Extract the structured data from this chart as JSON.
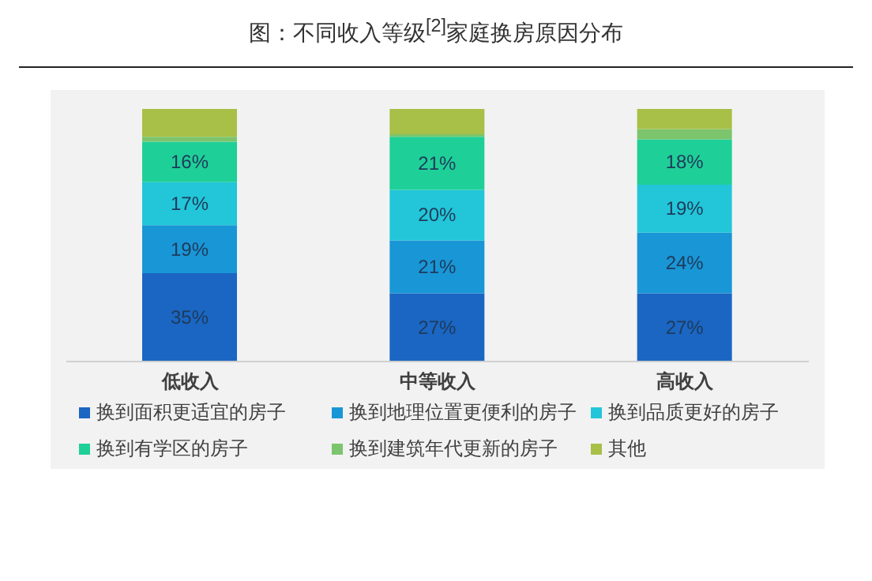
{
  "chart_data": {
    "type": "bar",
    "title": "图：不同收入等级$^{[2]}$家庭换房原因分布",
    "categories": [
      "低收入",
      "中等收入",
      "高收入"
    ],
    "stacked": true,
    "legend": "bottom",
    "series": [
      {
        "name": "换到面积更适宜的房子",
        "color": "#1a66c2",
        "values": [
          35,
          27,
          27
        ],
        "value_labels": [
          "35%",
          "27%",
          "27%"
        ]
      },
      {
        "name": "换到地理位置更便利的房子",
        "color": "#1996d6",
        "values": [
          19,
          21,
          24
        ],
        "value_labels": [
          "19%",
          "21%",
          "24%"
        ]
      },
      {
        "name": "换到品质更好的房子",
        "color": "#22c6d8",
        "values": [
          17,
          20,
          19
        ],
        "value_labels": [
          "17%",
          "20%",
          "19%"
        ]
      },
      {
        "name": "换到有学区的房子",
        "color": "#1fcf98",
        "values": [
          16,
          21,
          18
        ],
        "value_labels": [
          "16%",
          "21%",
          "18%"
        ]
      },
      {
        "name": "换到建筑年代更新的房子",
        "color": "#7cc56c",
        "values": [
          2,
          1,
          4
        ]
      },
      {
        "name": "其他",
        "color": "#a8bf48",
        "values": [
          11,
          10,
          8
        ]
      }
    ]
  }
}
